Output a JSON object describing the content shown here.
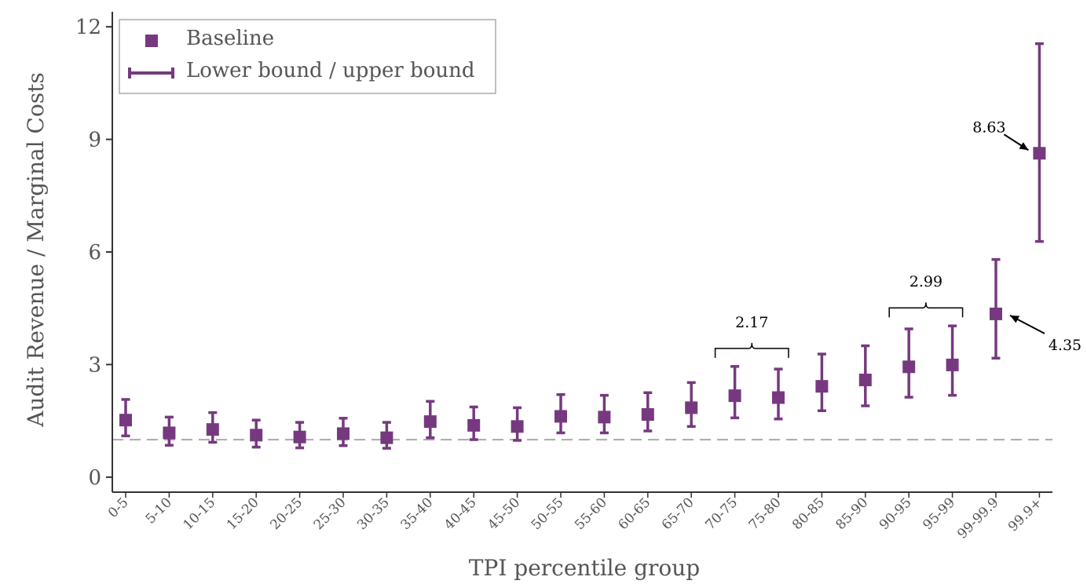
{
  "colors": {
    "series": "#76397f",
    "axis": "#333333",
    "text": "#555555",
    "reference": "#aaaaaa"
  },
  "chart_data": {
    "type": "scatter",
    "xlabel": "TPI percentile group",
    "ylabel": "Audit Revenue / Marginal Costs",
    "categories": [
      "0-5",
      "5-10",
      "10-15",
      "15-20",
      "20-25",
      "25-30",
      "30-35",
      "35-40",
      "40-45",
      "45-50",
      "50-55",
      "55-60",
      "60-65",
      "65-70",
      "70-75",
      "75-80",
      "80-85",
      "85-90",
      "90-95",
      "95-99",
      "99-99.9",
      "99.9+"
    ],
    "ylim": [
      -0.4,
      12.4
    ],
    "yticks": [
      0,
      3,
      6,
      9,
      12
    ],
    "ytick_labels": [
      "0",
      "3",
      "6",
      "9",
      "12"
    ],
    "reference_line": 1.0,
    "grid": false,
    "legend_position": "top-left",
    "legend": {
      "baseline": "Baseline",
      "bounds": "Lower bound / upper bound"
    },
    "series": [
      {
        "name": "Baseline",
        "values": [
          1.52,
          1.18,
          1.27,
          1.12,
          1.07,
          1.16,
          1.05,
          1.48,
          1.38,
          1.35,
          1.62,
          1.6,
          1.67,
          1.85,
          2.17,
          2.12,
          2.42,
          2.59,
          2.94,
          2.99,
          4.35,
          8.63
        ]
      },
      {
        "name": "Lower bound / upper bound",
        "lower": [
          1.1,
          0.85,
          0.93,
          0.8,
          0.78,
          0.84,
          0.77,
          1.05,
          1.0,
          0.98,
          1.18,
          1.18,
          1.23,
          1.35,
          1.58,
          1.55,
          1.77,
          1.9,
          2.13,
          2.18,
          3.17,
          6.28
        ],
        "upper": [
          2.07,
          1.6,
          1.72,
          1.52,
          1.46,
          1.57,
          1.46,
          2.02,
          1.87,
          1.85,
          2.2,
          2.18,
          2.25,
          2.52,
          2.95,
          2.88,
          3.28,
          3.5,
          3.95,
          4.03,
          5.8,
          11.55
        ]
      }
    ],
    "annotations": [
      {
        "text": "8.63",
        "category": "99.9+"
      },
      {
        "text": "4.35",
        "category": "99-99.9"
      },
      {
        "text": "2.17",
        "categories": [
          "70-75",
          "75-80"
        ]
      },
      {
        "text": "2.99",
        "categories": [
          "90-95",
          "95-99"
        ]
      }
    ]
  }
}
